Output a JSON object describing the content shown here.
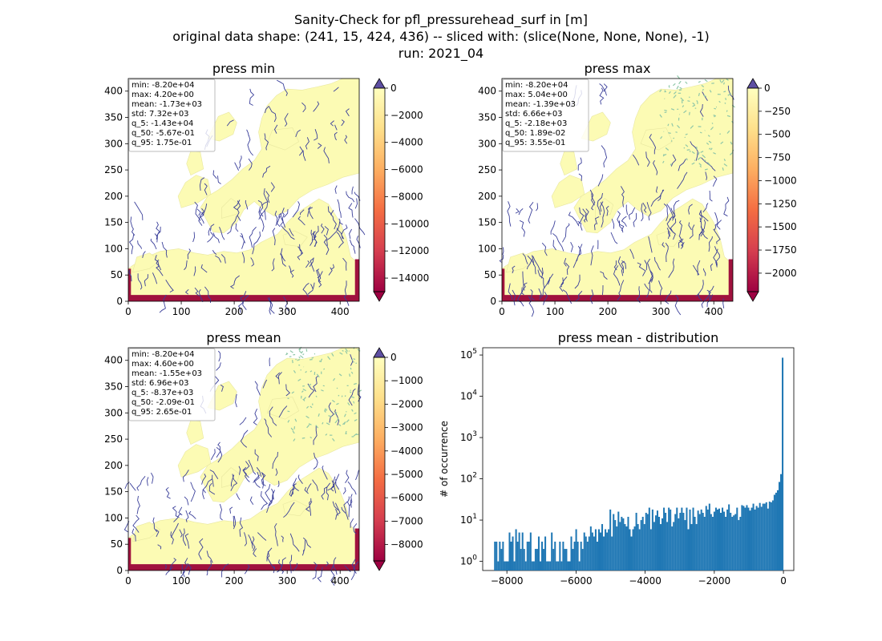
{
  "figure": {
    "title_lines": [
      "Sanity-Check for pfl_pressurehead_surf in [m]",
      "original data shape: (241, 15, 424, 436) -- sliced with: (slice(None, None, None), -1)",
      "run: 2021_04"
    ]
  },
  "colors": {
    "colormap": [
      "#9e0142",
      "#d53e4f",
      "#f46d43",
      "#fdae61",
      "#fee08b",
      "#ffffbf"
    ],
    "land": "#fcfbb4",
    "river": "#3a3f9a",
    "river_light": "#8fc7a8",
    "boundary": "#a0123e",
    "over": "#5e4fa2",
    "hist_bar": "#1f77b4"
  },
  "chart_data": [
    {
      "type": "heatmap",
      "title": "press min",
      "xlim": [
        0,
        436
      ],
      "ylim": [
        0,
        424
      ],
      "xticks": [
        0,
        100,
        200,
        300,
        400
      ],
      "yticks": [
        0,
        50,
        100,
        150,
        200,
        250,
        300,
        350,
        400
      ],
      "stats": [
        "min: -8.20e+04",
        "max: 4.20e+00",
        "mean: -1.73e+03",
        "std: 7.32e+03",
        "q_5: -1.43e+04",
        "q_50: -5.67e-01",
        "q_95: 1.75e-01"
      ],
      "colorbar": {
        "range": [
          -15000,
          0
        ],
        "ticks": [
          0,
          -2000,
          -4000,
          -6000,
          -8000,
          -10000,
          -12000,
          -14000
        ]
      }
    },
    {
      "type": "heatmap",
      "title": "press max",
      "xlim": [
        0,
        436
      ],
      "ylim": [
        0,
        424
      ],
      "xticks": [
        0,
        100,
        200,
        300,
        400
      ],
      "yticks": [
        0,
        50,
        100,
        150,
        200,
        250,
        300,
        350,
        400
      ],
      "stats": [
        "min: -8.20e+04",
        "max: 5.04e+00",
        "mean: -1.39e+03",
        "std: 6.66e+03",
        "q_5: -2.18e+03",
        "q_50: 1.89e-02",
        "q_95: 3.55e-01"
      ],
      "colorbar": {
        "range": [
          -2200,
          0
        ],
        "ticks": [
          0,
          -250,
          -500,
          -750,
          -1000,
          -1250,
          -1500,
          -1750,
          -2000
        ]
      }
    },
    {
      "type": "heatmap",
      "title": "press mean",
      "xlim": [
        0,
        436
      ],
      "ylim": [
        0,
        424
      ],
      "xticks": [
        0,
        100,
        200,
        300,
        400
      ],
      "yticks": [
        0,
        50,
        100,
        150,
        200,
        250,
        300,
        350,
        400
      ],
      "stats": [
        "min: -8.20e+04",
        "max: 4.60e+00",
        "mean: -1.55e+03",
        "std: 6.96e+03",
        "q_5: -8.37e+03",
        "q_50: -2.09e-01",
        "q_95: 2.65e-01"
      ],
      "colorbar": {
        "range": [
          -8700,
          0
        ],
        "ticks": [
          0,
          -1000,
          -2000,
          -3000,
          -4000,
          -5000,
          -6000,
          -7000,
          -8000
        ]
      }
    },
    {
      "type": "bar",
      "title": "press mean - distribution",
      "ylabel": "# of occurrence",
      "yscale": "log",
      "xlim": [
        -8700,
        300
      ],
      "ylim": [
        0.6,
        150000
      ],
      "xticks": [
        -8000,
        -6000,
        -4000,
        -2000,
        0
      ],
      "yticks": [
        1,
        10,
        100,
        1000,
        10000,
        100000
      ],
      "bin_range": [
        -8370,
        0
      ],
      "counts": [
        3,
        3,
        1,
        3,
        2,
        3,
        1,
        1,
        1,
        5,
        3,
        4,
        1,
        6,
        3,
        5,
        2,
        5,
        2,
        1,
        3,
        3,
        5,
        1,
        1,
        2,
        2,
        4,
        1,
        3,
        2,
        4,
        1,
        1,
        1,
        5,
        2,
        3,
        1,
        1,
        3,
        1,
        3,
        2,
        2,
        1,
        1,
        4,
        2,
        3,
        6,
        3,
        1,
        3,
        2,
        5,
        4,
        3,
        4,
        7,
        5,
        4,
        6,
        3,
        6,
        5,
        8,
        4,
        6,
        5,
        6,
        18,
        4,
        14,
        10,
        7,
        16,
        9,
        12,
        11,
        8,
        7,
        12,
        6,
        4,
        6,
        7,
        15,
        8,
        6,
        10,
        12,
        8,
        15,
        14,
        20,
        6,
        18,
        9,
        13,
        17,
        12,
        8,
        11,
        20,
        15,
        9,
        20,
        18,
        7,
        9,
        14,
        20,
        11,
        15,
        20,
        15,
        10,
        20,
        6,
        18,
        8,
        20,
        12,
        8,
        17,
        14,
        18,
        15,
        12,
        22,
        18,
        25,
        14,
        12,
        16,
        20,
        18,
        19,
        15,
        20,
        16,
        12,
        18,
        24,
        15,
        12,
        13,
        14,
        20,
        10,
        12,
        23,
        22,
        20,
        23,
        20,
        17,
        20,
        25,
        18,
        22,
        20,
        26,
        21,
        25,
        25,
        27,
        19,
        28,
        27,
        30,
        41,
        46,
        53,
        84,
        130,
        86000
      ]
    }
  ]
}
